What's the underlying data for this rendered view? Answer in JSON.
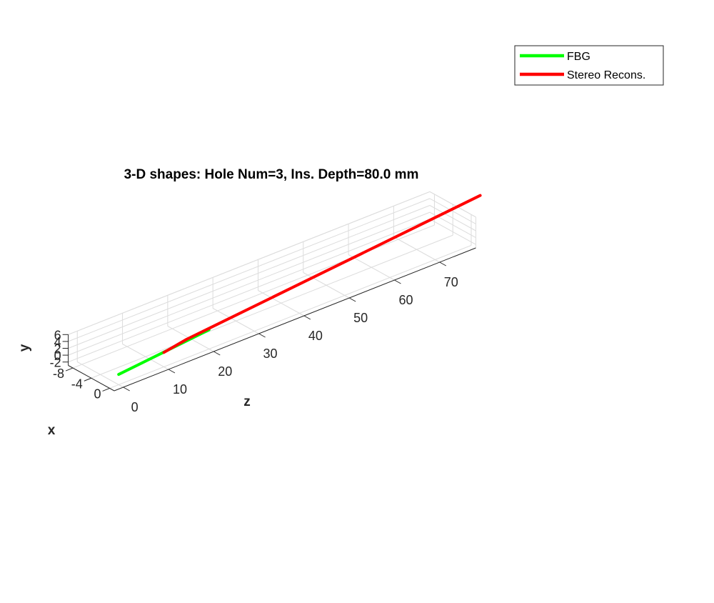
{
  "chart_data": {
    "type": "line",
    "title": "3-D shapes: Hole Num=3, Ins. Depth=80.0 mm",
    "xlabel": "x",
    "ylabel": "y",
    "zlabel": "z",
    "grid": true,
    "legend_position": "top-right",
    "z_ticks": [
      "0",
      "10",
      "20",
      "30",
      "40",
      "50",
      "60",
      "70"
    ],
    "y_ticks": [
      "-2",
      "0",
      "2",
      "4",
      "6"
    ],
    "x_ticks": [
      "0",
      "-4",
      "-8"
    ],
    "series": [
      {
        "name": "FBG",
        "color": "#00ff00",
        "points": [
          [
            0,
            0,
            0
          ],
          [
            20,
            2.6,
            0
          ]
        ]
      },
      {
        "name": "Stereo Recons.",
        "color": "#ff0000",
        "points": [
          [
            10,
            1.2,
            0
          ],
          [
            15,
            2.4,
            0
          ],
          [
            20,
            3.0,
            0
          ],
          [
            80,
            10.5,
            0
          ]
        ]
      }
    ]
  }
}
